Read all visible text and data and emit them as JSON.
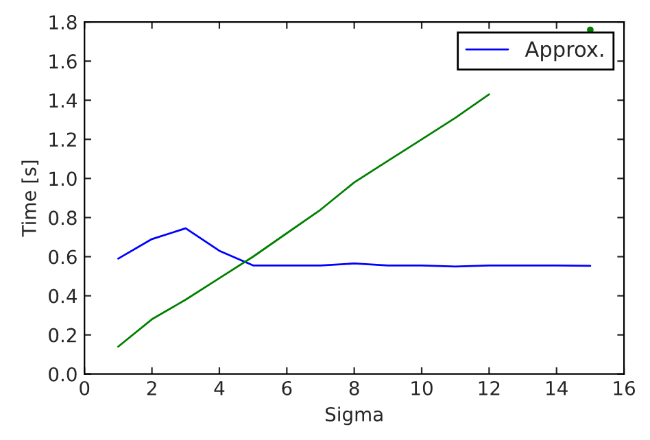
{
  "chart_data": {
    "type": "line",
    "xlabel": "Sigma",
    "ylabel": "Time [s]",
    "x": [
      1,
      2,
      3,
      4,
      5,
      6,
      7,
      8,
      9,
      10,
      11,
      12,
      13,
      14,
      15
    ],
    "series": [
      {
        "name": "Approx.",
        "color": "#0000ff",
        "values": [
          0.59,
          0.69,
          0.745,
          0.63,
          0.555,
          0.555,
          0.555,
          0.565,
          0.555,
          0.555,
          0.55,
          0.555,
          0.555,
          0.555,
          0.553
        ]
      },
      {
        "color": "#008000",
        "values": [
          0.14,
          0.28,
          0.38,
          0.49,
          0.6,
          0.72,
          0.84,
          0.98,
          1.09,
          1.2,
          1.31,
          1.43,
          null,
          null,
          1.76
        ]
      }
    ],
    "xlim": [
      0,
      16
    ],
    "xticks": [
      0,
      2,
      4,
      6,
      8,
      10,
      12,
      14,
      16
    ],
    "ylim": [
      0,
      1.8
    ],
    "yticks": [
      {
        "value": 0,
        "label": "0.0"
      },
      {
        "value": 0.2,
        "label": "0.2"
      },
      {
        "value": 0.4,
        "label": "0.4"
      },
      {
        "value": 0.6,
        "label": "0.6"
      },
      {
        "value": 0.8,
        "label": "0.8"
      },
      {
        "value": 1.0,
        "label": "1.0"
      },
      {
        "value": 1.2,
        "label": "1.2"
      },
      {
        "value": 1.4,
        "label": "1.4"
      },
      {
        "value": 1.6,
        "label": "1.6"
      },
      {
        "value": 1.8,
        "label": "1.8"
      }
    ],
    "legend": "top right",
    "grid": false
  }
}
